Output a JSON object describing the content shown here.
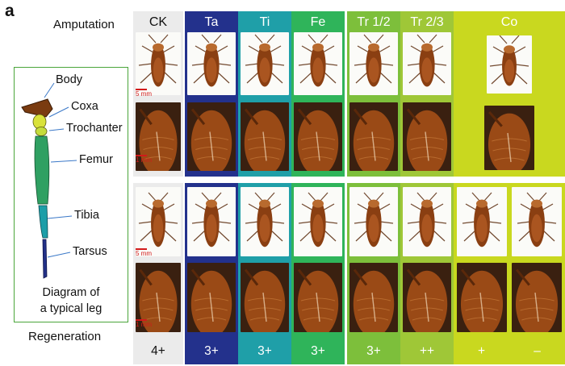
{
  "panel_letter": "a",
  "row_labels": {
    "top": "Amputation",
    "bottom": "Regeneration"
  },
  "diagram": {
    "labels": {
      "body": "Body",
      "coxa": "Coxa",
      "trochanter": "Trochanter",
      "femur": "Femur",
      "tibia": "Tibia",
      "tarsus": "Tarsus"
    },
    "caption_line1": "Diagram of",
    "caption_line2": "a typical leg"
  },
  "columns": [
    {
      "id": "ck",
      "header": "CK",
      "score": "4+",
      "color": "#ebebeb",
      "text_color": "#111111"
    },
    {
      "id": "ta",
      "header": "Ta",
      "score": "3+",
      "color": "#23318c",
      "text_color": "#ffffff"
    },
    {
      "id": "ti",
      "header": "Ti",
      "score": "3+",
      "color": "#1f9fa8",
      "text_color": "#ffffff"
    },
    {
      "id": "fe",
      "header": "Fe",
      "score": "3+",
      "color": "#2fb45a",
      "text_color": "#ffffff"
    },
    {
      "id": "tr12",
      "header": "Tr 1/2",
      "score": "3+",
      "color": "#7dbf3b",
      "text_color": "#ffffff"
    },
    {
      "id": "tr23",
      "header": "Tr 2/3",
      "score": "++",
      "color": "#9fc737",
      "text_color": "#ffffff"
    },
    {
      "id": "co",
      "header": "Co",
      "score": "+",
      "score2": "–",
      "color": "#c9d81f",
      "text_color": "#ffffff"
    }
  ],
  "scale_bars": {
    "whole": "5 mm",
    "closeup": "1 mm"
  }
}
